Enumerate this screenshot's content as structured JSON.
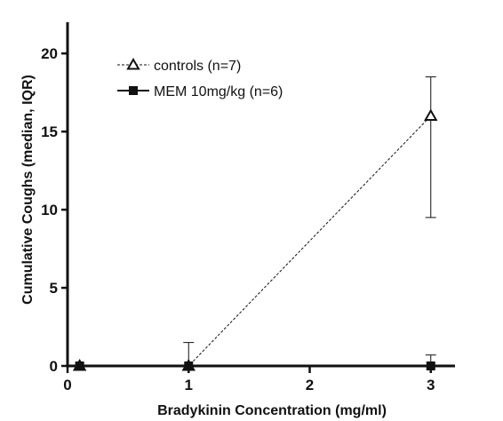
{
  "chart_data": {
    "type": "line",
    "title": "",
    "xlabel": "Bradykinin Concentration (mg/ml)",
    "ylabel": "Cumulative Coughs (median, IQR)",
    "xlim": [
      0,
      3.2
    ],
    "ylim": [
      0,
      22
    ],
    "x_ticks": [
      0,
      1,
      2,
      3
    ],
    "y_ticks": [
      0,
      5,
      10,
      15,
      20
    ],
    "grid": false,
    "legend_position": "top-left",
    "series": [
      {
        "name": "controls (n=7)",
        "marker": "open-triangle",
        "line_style": "dashed",
        "color": "#111111",
        "x": [
          0.1,
          1,
          3
        ],
        "y": [
          0,
          0,
          16
        ],
        "error_low": [
          0,
          0,
          9.5
        ],
        "error_high": [
          0,
          1.5,
          18.5
        ]
      },
      {
        "name": "MEM 10mg/kg (n=6)",
        "marker": "filled-square",
        "line_style": "solid",
        "color": "#111111",
        "x": [
          0.1,
          1,
          3
        ],
        "y": [
          0,
          0,
          0
        ],
        "error_low": [
          0,
          0,
          0
        ],
        "error_high": [
          0,
          0,
          0.7
        ]
      }
    ]
  }
}
